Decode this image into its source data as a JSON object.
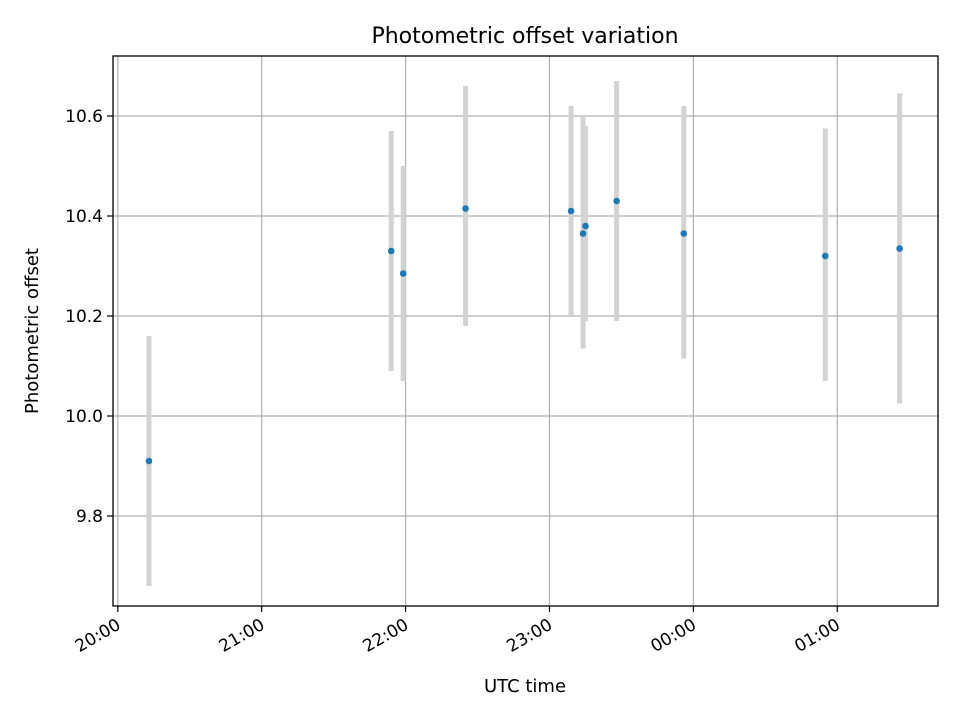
{
  "chart_data": {
    "type": "scatter",
    "title": "Photometric offset variation",
    "xlabel": "UTC time",
    "ylabel": "Photometric offset",
    "grid": true,
    "x_axis": {
      "kind": "time",
      "range": [
        "19:58",
        "01:42"
      ],
      "ticks": [
        "20:00",
        "21:00",
        "22:00",
        "23:00",
        "00:00",
        "01:00"
      ]
    },
    "y_axis": {
      "range": [
        9.62,
        10.72
      ],
      "ticks": [
        9.8,
        10.0,
        10.2,
        10.4,
        10.6
      ],
      "tick_labels": [
        "9.8",
        "10.0",
        "10.2",
        "10.4",
        "10.6"
      ]
    },
    "colors": {
      "point": "#1f77b4",
      "errorbar": "#d3d3d3",
      "grid": "#b0b0b0",
      "axes": "#000000"
    },
    "series": [
      {
        "points": [
          {
            "x": "20:13",
            "y": 9.91,
            "lo": 9.66,
            "hi": 10.16
          },
          {
            "x": "21:54",
            "y": 10.33,
            "lo": 10.09,
            "hi": 10.57
          },
          {
            "x": "21:59",
            "y": 10.285,
            "lo": 10.07,
            "hi": 10.5
          },
          {
            "x": "22:25",
            "y": 10.415,
            "lo": 10.18,
            "hi": 10.66
          },
          {
            "x": "23:09",
            "y": 10.41,
            "lo": 10.2,
            "hi": 10.62
          },
          {
            "x": "23:14",
            "y": 10.365,
            "lo": 10.135,
            "hi": 10.6
          },
          {
            "x": "23:15",
            "y": 10.38,
            "lo": 10.19,
            "hi": 10.58
          },
          {
            "x": "23:28",
            "y": 10.43,
            "lo": 10.19,
            "hi": 10.67
          },
          {
            "x": "23:56",
            "y": 10.365,
            "lo": 10.115,
            "hi": 10.62
          },
          {
            "x": "00:55",
            "y": 10.32,
            "lo": 10.07,
            "hi": 10.575
          },
          {
            "x": "01:26",
            "y": 10.335,
            "lo": 10.025,
            "hi": 10.645
          }
        ]
      }
    ]
  }
}
